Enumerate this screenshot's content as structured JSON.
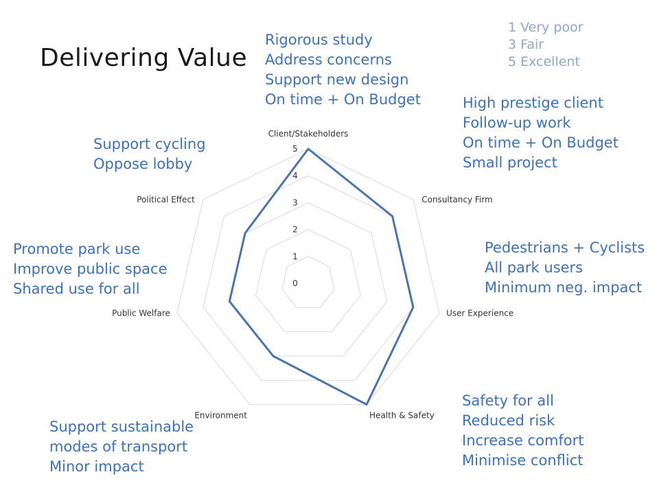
{
  "slide": {
    "title": "Delivering Value"
  },
  "legend": {
    "items": [
      "1 Very poor",
      "3 Fair",
      "5 Excellent"
    ]
  },
  "annotations": {
    "client": [
      "Rigorous study",
      "Address concerns",
      "Support new design",
      "On time + On Budget"
    ],
    "consultancy": [
      "High prestige client",
      "Follow-up work",
      "On time + On Budget",
      "Small project"
    ],
    "user": [
      "Pedestrians + Cyclists",
      "All park users",
      "Minimum neg. impact"
    ],
    "health": [
      "Safety for all",
      "Reduced risk",
      "Increase comfort",
      "Minimise conflict"
    ],
    "environment": [
      "Support sustainable",
      "modes of transport",
      "Minor impact"
    ],
    "welfare": [
      "Promote park use",
      "Improve public space",
      "Shared use for all"
    ],
    "political": [
      "Support cycling",
      "Oppose lobby"
    ]
  },
  "colors": {
    "series_line": "#4a74ad",
    "grid": "#d9d9d9",
    "annotation_text": "#3d72b8",
    "legend_text": "#8fa8c8"
  },
  "chart_data": {
    "type": "radar",
    "categories": [
      "Client/Stakeholders",
      "Consultancy Firm",
      "User Experience",
      "Health & Safety",
      "Environment",
      "Public Welfare",
      "Political Effect"
    ],
    "series": [
      {
        "values": [
          5,
          4,
          4,
          5,
          3,
          3,
          3
        ]
      }
    ],
    "ylim": [
      0,
      5
    ],
    "ticks": [
      "0",
      "1",
      "2",
      "3",
      "4",
      "5"
    ],
    "grid": true
  }
}
